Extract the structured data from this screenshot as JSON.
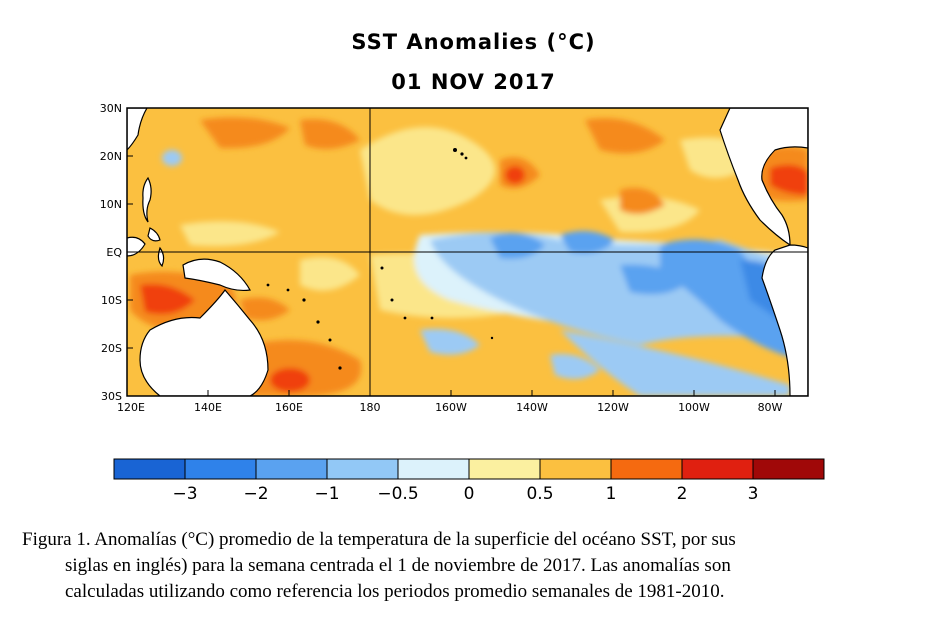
{
  "map": {
    "title": "SST Anomalies (°C)",
    "date": "01 NOV 2017",
    "lat_labels": [
      "30N",
      "20N",
      "10N",
      "EQ",
      "10S",
      "20S",
      "30S"
    ],
    "lon_labels": [
      "120E",
      "140E",
      "160E",
      "180",
      "160W",
      "140W",
      "120W",
      "100W",
      "80W"
    ],
    "colors": {
      "strong_cold": "#1a66d6",
      "mid_cold": "#3c8ae6",
      "cold": "#66a8ee",
      "weak_cold": "#9ccaf4",
      "neutral_cold": "#dcf2fb",
      "neutral_warm": "#fbf0a8",
      "weak_warm": "#fbc040",
      "warm": "#f58a1e",
      "strong_warm": "#f04010",
      "hot": "#d01010",
      "very_hot": "#a00808",
      "land": "#ffffff"
    }
  },
  "colorbar": {
    "labels": [
      "−3",
      "−2",
      "−1",
      "−0.5",
      "0",
      "0.5",
      "1",
      "2",
      "3"
    ],
    "colors": [
      "#1964d4",
      "#2f82ea",
      "#5aa2f0",
      "#92c8f6",
      "#dcf2fb",
      "#fbf0a0",
      "#fbc040",
      "#f56a10",
      "#e02010",
      "#a00808"
    ]
  },
  "caption": {
    "line1": "Figura 1. Anomalías (°C) promedio de la temperatura de la superficie del océano SST, por sus",
    "line2": "siglas en inglés) para la semana centrada el 1 de noviembre de 2017. Las anomalías son",
    "line3": "calculadas utilizando como referencia los periodos promedio semanales de 1981-2010."
  }
}
